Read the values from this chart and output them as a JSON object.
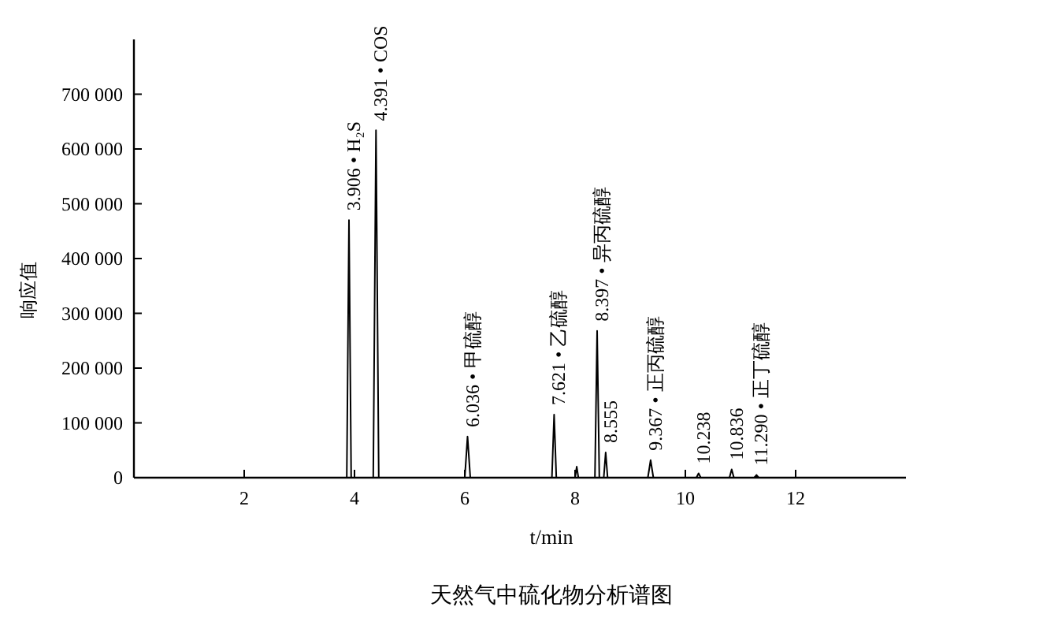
{
  "chart_data": {
    "type": "line",
    "title": "天然气中硫化物分析谱图",
    "xlabel": "t/min",
    "ylabel": "响应值",
    "xlim": [
      0,
      14
    ],
    "xticks": [
      2,
      4,
      6,
      8,
      10,
      12
    ],
    "ylim": [
      0,
      800000
    ],
    "yticks": [
      {
        "value": 0,
        "label": "0"
      },
      {
        "value": 100000,
        "label": "100 000"
      },
      {
        "value": 200000,
        "label": "200 000"
      },
      {
        "value": 300000,
        "label": "300 000"
      },
      {
        "value": 400000,
        "label": "400 000"
      },
      {
        "value": 500000,
        "label": "500 000"
      },
      {
        "value": 600000,
        "label": "600 000"
      },
      {
        "value": 700000,
        "label": "700 000"
      }
    ],
    "grid": false,
    "marker": "none",
    "line_style": "solid",
    "series": [
      {
        "color": "#000000",
        "x": [
          0.5,
          3.86,
          3.9,
          3.94,
          4.34,
          4.39,
          4.44,
          6.0,
          6.05,
          6.1,
          7.58,
          7.62,
          7.66,
          8.0,
          8.03,
          8.06,
          8.36,
          8.4,
          8.44,
          8.52,
          8.555,
          8.59,
          9.32,
          9.37,
          9.42,
          10.2,
          10.24,
          10.28,
          10.8,
          10.84,
          10.88,
          11.25,
          11.29,
          11.33,
          13.5
        ],
        "values": [
          0,
          0,
          470000,
          0,
          0,
          634000,
          0,
          0,
          75000,
          0,
          0,
          115000,
          0,
          0,
          20000,
          0,
          0,
          268000,
          0,
          0,
          46000,
          0,
          0,
          32000,
          0,
          0,
          8000,
          0,
          0,
          15000,
          0,
          0,
          5000,
          0,
          0
        ]
      }
    ],
    "annotations": [
      {
        "text": "3.906 • H₂S",
        "x": 3.9,
        "y": 470000
      },
      {
        "text": "4.391 • COS",
        "x": 4.39,
        "y": 634000
      },
      {
        "text": "6.036 • 甲硫醇",
        "x": 6.05,
        "y": 75000
      },
      {
        "text": "7.621 • 乙硫醇",
        "x": 7.62,
        "y": 115000
      },
      {
        "text": "8.397 • 异丙硫醇",
        "x": 8.4,
        "y": 268000
      },
      {
        "text": "8.555",
        "x": 8.555,
        "y": 46000
      },
      {
        "text": "9.367 • 正丙硫醇",
        "x": 9.37,
        "y": 32000
      },
      {
        "text": "10.238",
        "x": 10.24,
        "y": 8000
      },
      {
        "text": "10.836",
        "x": 10.84,
        "y": 15000
      },
      {
        "text": "11.290 • 正丁硫醇",
        "x": 11.29,
        "y": 5000
      }
    ]
  }
}
